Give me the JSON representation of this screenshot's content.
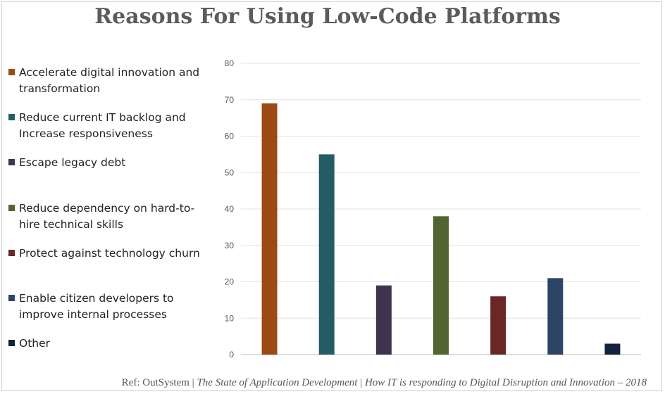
{
  "title": "Reasons For Using Low-Code Platforms",
  "legend": [
    {
      "label": "Accelerate digital innovation and transformation",
      "color": "#9c4a14"
    },
    {
      "label": "Reduce current IT backlog and Increase responsiveness",
      "color": "#245c66"
    },
    {
      "label": "Escape legacy debt",
      "color": "#3f3350"
    },
    {
      "label": "Reduce dependency on hard-to-hire technical skills",
      "color": "#506530"
    },
    {
      "label": "Protect against technology churn",
      "color": "#6b2626"
    },
    {
      "label": "Enable citizen developers to improve internal processes",
      "color": "#2c4566"
    },
    {
      "label": "Other",
      "color": "#13233d"
    }
  ],
  "reference": {
    "prefix": "Ref: OutSystem | ",
    "italic": "The State of Application Development",
    "sep": " | ",
    "italic2": "How IT is responding to Digital Disruption and Innovation – 2018"
  },
  "chart_data": {
    "type": "bar",
    "title": "Reasons For Using Low-Code Platforms",
    "xlabel": "",
    "ylabel": "",
    "categories": [
      "Accelerate digital innovation and transformation",
      "Reduce current IT backlog and Increase responsiveness",
      "Escape legacy debt",
      "Reduce dependency on hard-to-hire technical skills",
      "Protect against technology churn",
      "Enable citizen developers to improve internal processes",
      "Other"
    ],
    "values": [
      69,
      55,
      19,
      38,
      16,
      21,
      3
    ],
    "colors": [
      "#9c4a14",
      "#245c66",
      "#3f3350",
      "#506530",
      "#6b2626",
      "#2c4566",
      "#13233d"
    ],
    "ylim": [
      0,
      80
    ],
    "yticks": [
      0,
      10,
      20,
      30,
      40,
      50,
      60,
      70,
      80
    ],
    "grid": true,
    "legend_position": "left"
  }
}
